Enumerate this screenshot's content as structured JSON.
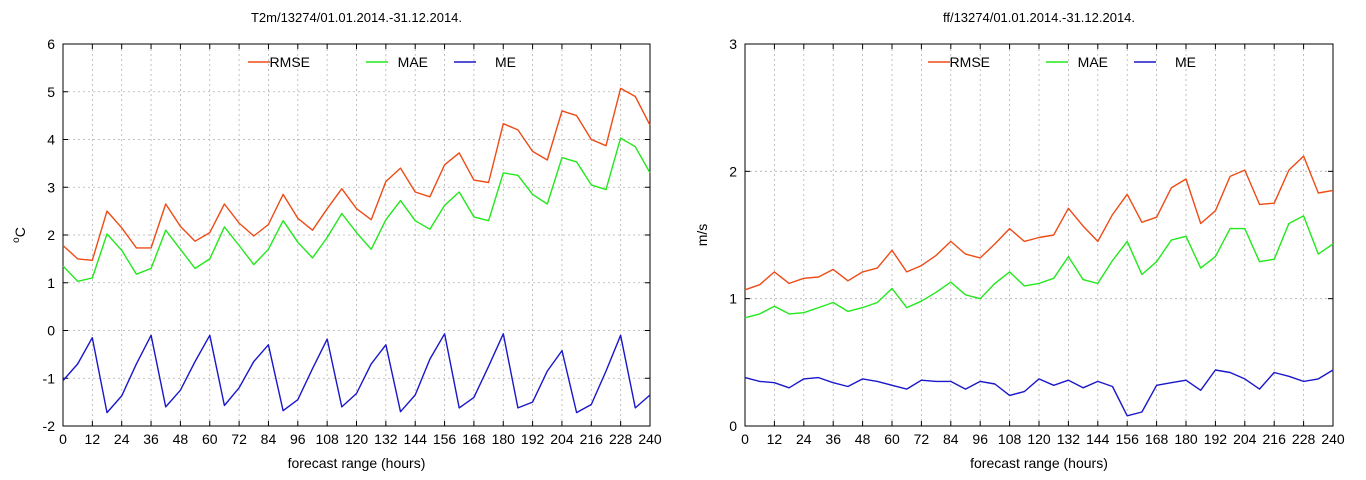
{
  "colors": {
    "RMSE": "#ee4b16",
    "MAE": "#22e81c",
    "ME": "#1a17c9"
  },
  "chart_data": [
    {
      "type": "line",
      "title": "T2m/13274/01.01.2014.-31.12.2014.",
      "xlabel": "forecast range (hours)",
      "ylabel": "oC",
      "ylabel_main": "C",
      "ylabel_sup": "o",
      "xlim": [
        0,
        240
      ],
      "ylim": [
        -2,
        6
      ],
      "xticks": [
        0,
        12,
        24,
        36,
        48,
        60,
        72,
        84,
        96,
        108,
        120,
        132,
        144,
        156,
        168,
        180,
        192,
        204,
        216,
        228,
        240
      ],
      "yticks": [
        -2,
        -1,
        0,
        1,
        2,
        3,
        4,
        5,
        6
      ],
      "grid": true,
      "legend_position": "top-center",
      "x": [
        0,
        6,
        12,
        18,
        24,
        30,
        36,
        42,
        48,
        54,
        60,
        66,
        72,
        78,
        84,
        90,
        96,
        102,
        108,
        114,
        120,
        126,
        132,
        138,
        144,
        150,
        156,
        162,
        168,
        174,
        180,
        186,
        192,
        198,
        204,
        210,
        216,
        222,
        228,
        234,
        240
      ],
      "series": [
        {
          "name": "RMSE",
          "values": [
            1.78,
            1.5,
            1.47,
            2.5,
            2.15,
            1.73,
            1.73,
            2.65,
            2.18,
            1.87,
            2.05,
            2.65,
            2.25,
            1.98,
            2.22,
            2.85,
            2.35,
            2.1,
            2.55,
            2.97,
            2.55,
            2.32,
            3.12,
            3.4,
            2.9,
            2.8,
            3.47,
            3.72,
            3.15,
            3.1,
            4.33,
            4.2,
            3.75,
            3.57,
            4.6,
            4.5,
            4.0,
            3.87,
            5.07,
            4.9,
            4.3
          ]
        },
        {
          "name": "MAE",
          "values": [
            1.35,
            1.03,
            1.1,
            2.02,
            1.68,
            1.18,
            1.3,
            2.1,
            1.7,
            1.3,
            1.5,
            2.17,
            1.78,
            1.38,
            1.7,
            2.3,
            1.85,
            1.52,
            1.95,
            2.45,
            2.05,
            1.7,
            2.32,
            2.72,
            2.3,
            2.12,
            2.62,
            2.9,
            2.38,
            2.3,
            3.3,
            3.25,
            2.85,
            2.65,
            3.62,
            3.53,
            3.05,
            2.95,
            4.03,
            3.85,
            3.3
          ]
        },
        {
          "name": "ME",
          "values": [
            -1.05,
            -0.7,
            -0.15,
            -1.72,
            -1.37,
            -0.7,
            -0.1,
            -1.6,
            -1.25,
            -0.65,
            -0.1,
            -1.57,
            -1.2,
            -0.65,
            -0.3,
            -1.68,
            -1.45,
            -0.8,
            -0.18,
            -1.6,
            -1.32,
            -0.7,
            -0.3,
            -1.7,
            -1.35,
            -0.6,
            -0.07,
            -1.62,
            -1.4,
            -0.75,
            -0.07,
            -1.62,
            -1.5,
            -0.85,
            -0.42,
            -1.72,
            -1.55,
            -0.85,
            -0.1,
            -1.62,
            -1.35
          ]
        }
      ]
    },
    {
      "type": "line",
      "title": "ff/13274/01.01.2014.-31.12.2014.",
      "xlabel": "forecast range (hours)",
      "ylabel": "m/s",
      "ylabel_main": "m/s",
      "ylabel_sup": "",
      "xlim": [
        0,
        240
      ],
      "ylim": [
        0,
        3
      ],
      "xticks": [
        0,
        12,
        24,
        36,
        48,
        60,
        72,
        84,
        96,
        108,
        120,
        132,
        144,
        156,
        168,
        180,
        192,
        204,
        216,
        228,
        240
      ],
      "yticks": [
        0,
        1,
        2,
        3
      ],
      "grid": true,
      "legend_position": "top-center",
      "x": [
        0,
        6,
        12,
        18,
        24,
        30,
        36,
        42,
        48,
        54,
        60,
        66,
        72,
        78,
        84,
        90,
        96,
        102,
        108,
        114,
        120,
        126,
        132,
        138,
        144,
        150,
        156,
        162,
        168,
        174,
        180,
        186,
        192,
        198,
        204,
        210,
        216,
        222,
        228,
        234,
        240
      ],
      "series": [
        {
          "name": "RMSE",
          "values": [
            1.07,
            1.11,
            1.21,
            1.12,
            1.16,
            1.17,
            1.23,
            1.14,
            1.21,
            1.24,
            1.38,
            1.21,
            1.26,
            1.34,
            1.45,
            1.35,
            1.32,
            1.43,
            1.55,
            1.45,
            1.48,
            1.5,
            1.71,
            1.57,
            1.45,
            1.66,
            1.82,
            1.6,
            1.64,
            1.87,
            1.94,
            1.59,
            1.69,
            1.96,
            2.01,
            1.74,
            1.75,
            2.01,
            2.12,
            1.83,
            1.85
          ]
        },
        {
          "name": "MAE",
          "values": [
            0.85,
            0.88,
            0.94,
            0.88,
            0.89,
            0.93,
            0.97,
            0.9,
            0.93,
            0.97,
            1.08,
            0.93,
            0.98,
            1.05,
            1.13,
            1.03,
            1.0,
            1.12,
            1.21,
            1.1,
            1.12,
            1.16,
            1.33,
            1.15,
            1.12,
            1.3,
            1.45,
            1.19,
            1.29,
            1.46,
            1.49,
            1.24,
            1.33,
            1.55,
            1.55,
            1.29,
            1.31,
            1.59,
            1.65,
            1.35,
            1.43
          ]
        },
        {
          "name": "ME",
          "values": [
            0.38,
            0.35,
            0.34,
            0.3,
            0.37,
            0.38,
            0.34,
            0.31,
            0.37,
            0.35,
            0.32,
            0.29,
            0.36,
            0.35,
            0.35,
            0.29,
            0.35,
            0.33,
            0.24,
            0.27,
            0.37,
            0.32,
            0.36,
            0.3,
            0.35,
            0.31,
            0.08,
            0.11,
            0.32,
            0.34,
            0.36,
            0.28,
            0.44,
            0.42,
            0.37,
            0.29,
            0.42,
            0.39,
            0.35,
            0.37,
            0.44
          ]
        }
      ]
    }
  ]
}
